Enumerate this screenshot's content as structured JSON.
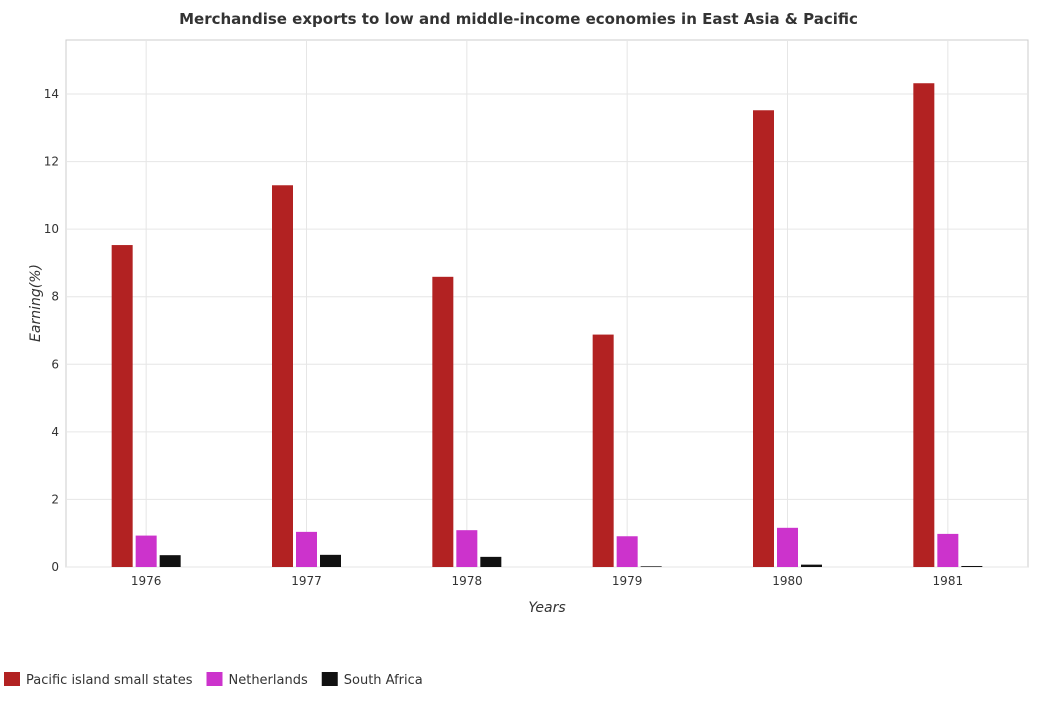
{
  "chart_data": {
    "type": "bar",
    "title": "Merchandise exports to low and middle-income economies in East Asia & Pacific",
    "xlabel": "Years",
    "ylabel": "Earning(%)",
    "categories": [
      "1976",
      "1977",
      "1978",
      "1979",
      "1980",
      "1981"
    ],
    "ylim": [
      0,
      15.6
    ],
    "yticks": [
      0,
      2,
      4,
      6,
      8,
      10,
      12,
      14
    ],
    "ytick_labels": [
      "0",
      "2",
      "4",
      "6",
      "8",
      "10",
      "12",
      "14"
    ],
    "grid": true,
    "legend_position": "bottom-left",
    "series": [
      {
        "name": "Pacific island small states",
        "color": "#b22222",
        "values": [
          9.53,
          11.3,
          8.59,
          6.88,
          13.52,
          14.32
        ]
      },
      {
        "name": "Netherlands",
        "color": "#cc33cc",
        "values": [
          0.93,
          1.04,
          1.09,
          0.91,
          1.16,
          0.98
        ]
      },
      {
        "name": "South Africa",
        "color": "#111111",
        "values": [
          0.35,
          0.36,
          0.3,
          0.02,
          0.07,
          0.03
        ]
      }
    ]
  }
}
